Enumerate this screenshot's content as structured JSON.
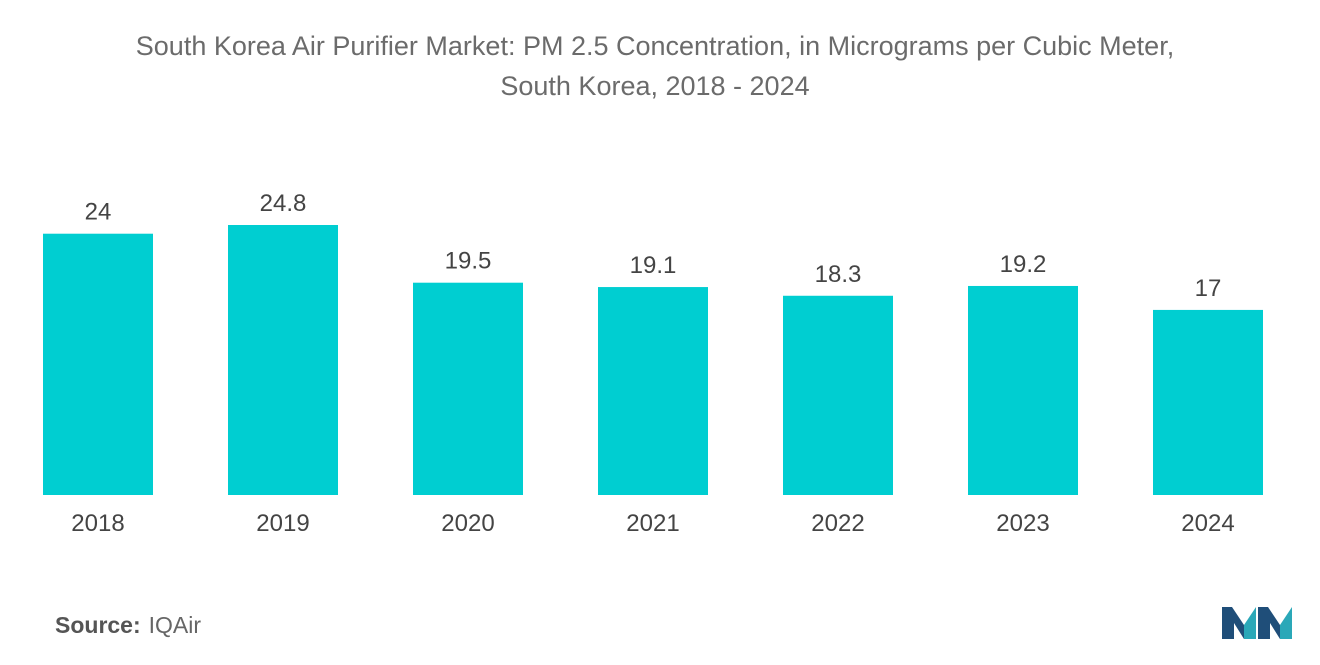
{
  "chart_data": {
    "type": "bar",
    "title_line1": "South Korea Air Purifier Market: PM 2.5 Concentration, in Micrograms per Cubic Meter,",
    "title_line2": "South Korea, 2018 - 2024",
    "categories": [
      "2018",
      "2019",
      "2020",
      "2021",
      "2022",
      "2023",
      "2024"
    ],
    "values": [
      24,
      24.8,
      19.5,
      19.1,
      18.3,
      19.2,
      17
    ],
    "value_labels": [
      "24",
      "24.8",
      "19.5",
      "19.1",
      "18.3",
      "19.2",
      "17"
    ],
    "xlabel": "",
    "ylabel": "",
    "ylim": [
      0,
      24.8
    ],
    "grid": false,
    "bar_color": "#00CED1"
  },
  "source": {
    "label": "Source:",
    "value": "IQAir"
  },
  "logo": {
    "icon": "mordor-intelligence-logo-icon",
    "colors": [
      "#1f4e79",
      "#2aa8b8"
    ]
  }
}
